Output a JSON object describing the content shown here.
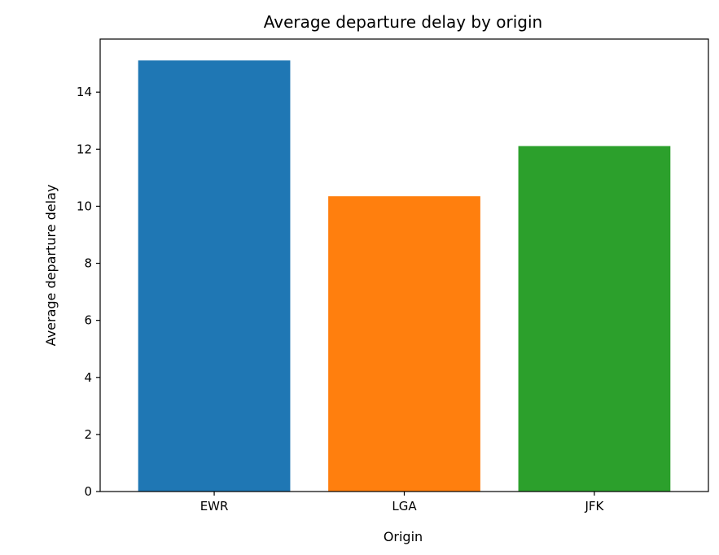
{
  "chart_data": {
    "type": "bar",
    "title": "Average departure delay by origin",
    "xlabel": "Origin",
    "ylabel": "Average departure delay",
    "categories": [
      "EWR",
      "LGA",
      "JFK"
    ],
    "values": [
      15.11,
      10.35,
      12.11
    ],
    "colors": [
      "#1f77b4",
      "#ff7f0e",
      "#2ca02c"
    ],
    "ylim": [
      0,
      15.86
    ],
    "yticks": [
      0,
      2,
      4,
      6,
      8,
      10,
      12,
      14
    ],
    "grid": false,
    "legend": "none"
  }
}
